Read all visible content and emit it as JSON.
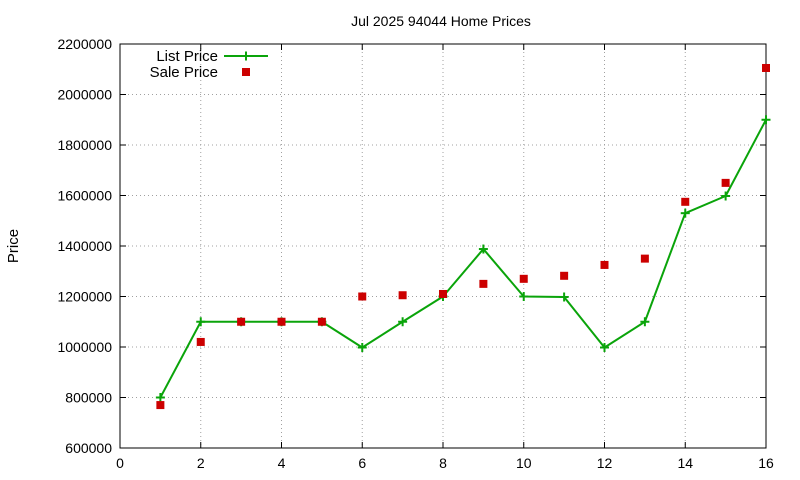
{
  "chart_data": {
    "type": "line",
    "title": "Jul 2025 94044 Home Prices",
    "xlabel": "",
    "ylabel": "Price",
    "xlim": [
      0,
      16
    ],
    "ylim": [
      600000,
      2200000
    ],
    "x_ticks": [
      0,
      2,
      4,
      6,
      8,
      10,
      12,
      14,
      16
    ],
    "y_ticks": [
      600000,
      800000,
      1000000,
      1200000,
      1400000,
      1600000,
      1800000,
      2000000,
      2200000
    ],
    "grid": true,
    "legend_position": "top-left",
    "series": [
      {
        "name": "List Price",
        "style": "line-plus",
        "color": "#0aa40a",
        "x": [
          1,
          2,
          3,
          4,
          5,
          6,
          7,
          8,
          9,
          10,
          11,
          12,
          13,
          14,
          15,
          16
        ],
        "y": [
          800000,
          1100000,
          1100000,
          1100000,
          1100000,
          998000,
          1100000,
          1200000,
          1388000,
          1200000,
          1198000,
          998000,
          1100000,
          1530000,
          1598000,
          1900000
        ]
      },
      {
        "name": "Sale Price",
        "style": "square",
        "color": "#cc0000",
        "x": [
          1,
          2,
          3,
          4,
          5,
          6,
          7,
          8,
          9,
          10,
          11,
          12,
          13,
          14,
          15,
          16
        ],
        "y": [
          770000,
          1020000,
          1100000,
          1100000,
          1100000,
          1200000,
          1205000,
          1210000,
          1250000,
          1270000,
          1282000,
          1325000,
          1350000,
          1575000,
          1650000,
          2105000
        ]
      }
    ]
  }
}
